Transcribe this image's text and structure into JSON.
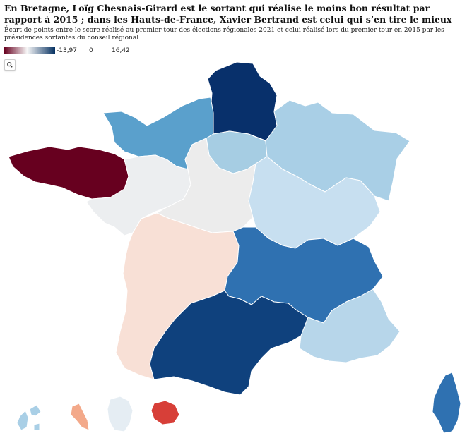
{
  "title": "En Bretagne, Loïg Chesnais-Girard est le sortant qui réalise le moins bon résultat par rapport à 2015 ; dans les Hauts-de-France, Xavier Bertrand est celui qui s’en tire le mieux",
  "subtitle": "Écart de points entre le score réalisé au premier tour des élections régionales 2021 et celui réalisé lors du premier tour en 2015 par les présidences sortantes du conseil régional",
  "legend": {
    "min_label": "-13,97",
    "mid_label": "0",
    "max_label": "16,42",
    "color_low": "#67001f",
    "color_mid": "#f7f7f7",
    "color_high": "#053061"
  },
  "zoom": {
    "icon": "magnifier-icon"
  },
  "regions": [
    {
      "key": "hauts-de-france",
      "color": "#08306b"
    },
    {
      "key": "normandie",
      "color": "#5aa0cc"
    },
    {
      "key": "ile-de-france",
      "color": "#a6cde3"
    },
    {
      "key": "grand-est",
      "color": "#a9cfe6"
    },
    {
      "key": "bretagne",
      "color": "#67001f"
    },
    {
      "key": "pays-de-la-loire",
      "color": "#eceef0"
    },
    {
      "key": "centre-val-de-loire",
      "color": "#ececec"
    },
    {
      "key": "bourgogne-franche-comte",
      "color": "#c7dff0"
    },
    {
      "key": "nouvelle-aquitaine",
      "color": "#f8e0d6"
    },
    {
      "key": "auvergne-rhone-alpes",
      "color": "#2f71b1"
    },
    {
      "key": "occitanie",
      "color": "#0f417d"
    },
    {
      "key": "provence-alpes-cote-d-azur",
      "color": "#b7d6ea"
    },
    {
      "key": "corse",
      "color": "#2f71b1"
    },
    {
      "key": "guadeloupe",
      "color": "#a9cfe6"
    },
    {
      "key": "martinique",
      "color": "#f3a98a"
    },
    {
      "key": "guyane",
      "color": "#e5edf3"
    },
    {
      "key": "la-reunion",
      "color": "#d73f38"
    }
  ]
}
